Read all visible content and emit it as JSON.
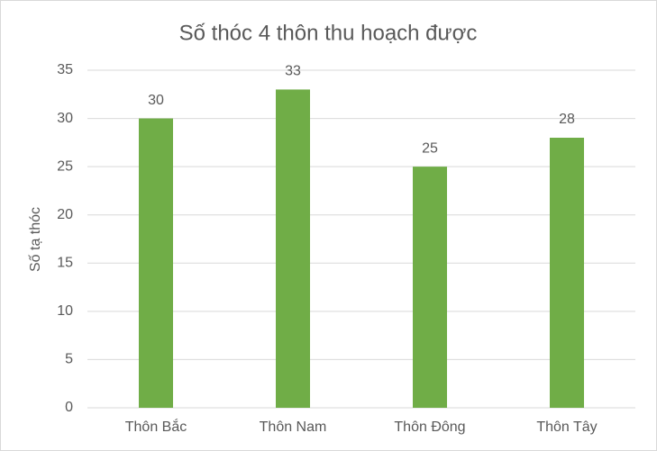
{
  "chart_data": {
    "type": "bar",
    "title": "Số thóc 4 thôn thu hoạch được",
    "y_label": "Số tạ thóc",
    "categories": [
      "Thôn Bắc",
      "Thôn Nam",
      "Thôn Đông",
      "Thôn Tây"
    ],
    "values": [
      30,
      33,
      25,
      28
    ],
    "color": "#70ad47",
    "ylim": [
      0,
      35
    ],
    "yticks": [
      0,
      5,
      10,
      15,
      20,
      25,
      30,
      35
    ],
    "grid": true,
    "data_labels": true
  }
}
